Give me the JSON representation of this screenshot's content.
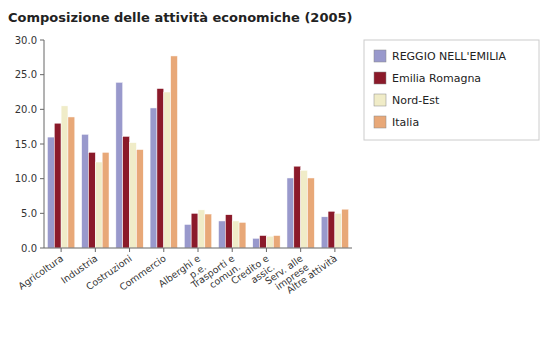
{
  "chart_data": {
    "type": "bar",
    "title": "Composizione delle attività economiche (2005)",
    "categories": [
      "Agricoltura",
      "Industria",
      "Costruzioni",
      "Commercio",
      "Alberghi e\np.e.",
      "Trasporti e\ncomun.",
      "Credito e\nassic.",
      "Serv. alle\nimprese",
      "Altre attività"
    ],
    "series": [
      {
        "name": "REGGIO NELL'EMILIA",
        "color": "#9999cc",
        "values": [
          16.0,
          16.4,
          23.9,
          20.2,
          3.4,
          3.9,
          1.4,
          10.1,
          4.5
        ]
      },
      {
        "name": "Emilia Romagna",
        "color": "#8b1a2a",
        "values": [
          18.0,
          13.8,
          16.1,
          23.0,
          5.0,
          4.8,
          1.8,
          11.8,
          5.3
        ]
      },
      {
        "name": "Nord-Est",
        "color": "#f0ecc8",
        "values": [
          20.5,
          12.4,
          15.2,
          22.5,
          5.5,
          3.9,
          1.7,
          11.2,
          5.0
        ]
      },
      {
        "name": "Italia",
        "color": "#e8a878",
        "values": [
          18.9,
          13.8,
          14.2,
          27.7,
          4.9,
          3.7,
          1.8,
          10.1,
          5.6
        ]
      }
    ],
    "ylim": [
      0,
      30
    ],
    "yticks": [
      {
        "value": 0.0,
        "label": "0.0"
      },
      {
        "value": 5.0,
        "label": "5.0"
      },
      {
        "value": 10.0,
        "label": "10.0"
      },
      {
        "value": 15.0,
        "label": "15.0"
      },
      {
        "value": 20.0,
        "label": "20.0"
      },
      {
        "value": 25.0,
        "label": "25.0"
      },
      {
        "value": 30.0,
        "label": "30.0"
      }
    ],
    "grid": false,
    "legend": "right"
  }
}
